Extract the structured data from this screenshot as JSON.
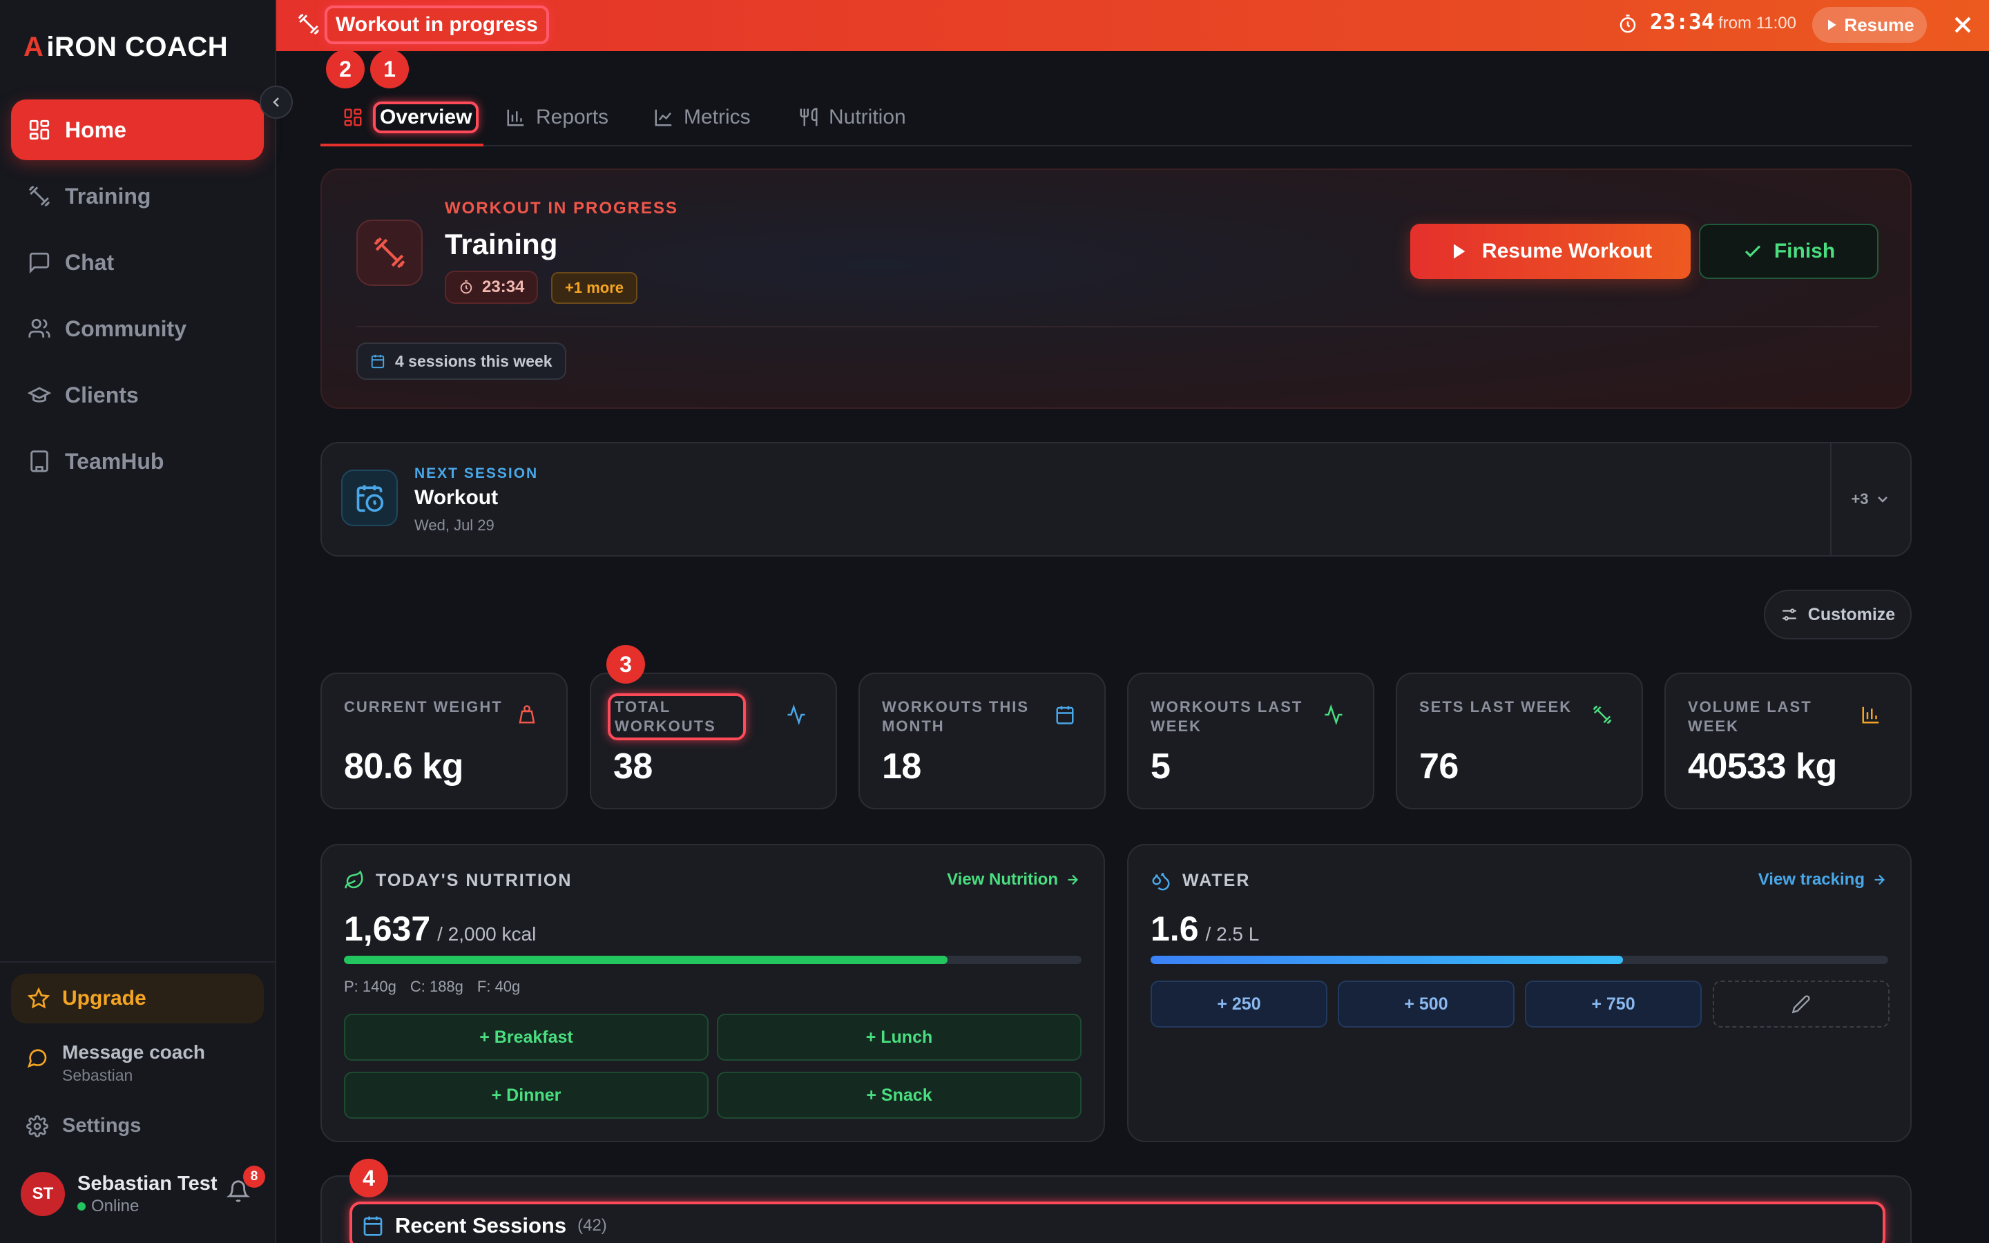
{
  "app": {
    "logo_prefix": "A",
    "logo_brand": "iRON COACH"
  },
  "colors": {
    "accent": "#e5302c",
    "success": "#4ade80",
    "info": "#4aa8e8",
    "warning": "#f5a524"
  },
  "sidebar": {
    "items": [
      {
        "label": "Home",
        "icon": "grid-icon",
        "active": true
      },
      {
        "label": "Training",
        "icon": "dumbbell-icon"
      },
      {
        "label": "Chat",
        "icon": "chat-icon"
      },
      {
        "label": "Community",
        "icon": "users-icon"
      },
      {
        "label": "Clients",
        "icon": "graduation-cap-icon"
      },
      {
        "label": "TeamHub",
        "icon": "building-icon"
      }
    ],
    "upgrade_label": "Upgrade",
    "message_coach": {
      "label": "Message coach",
      "coach_name": "Sebastian"
    },
    "settings_label": "Settings",
    "user": {
      "initials": "ST",
      "name": "Sebastian Test",
      "status": "Online",
      "notification_count": "8"
    }
  },
  "banner": {
    "title": "Workout in progress",
    "timer": "23:34",
    "from_text": "from 11:00",
    "resume_label": "Resume"
  },
  "markers": {
    "m1": "1",
    "m2": "2",
    "m3": "3",
    "m4": "4"
  },
  "tabs": [
    {
      "label": "Overview",
      "icon": "grid-icon",
      "active": true
    },
    {
      "label": "Reports",
      "icon": "bar-chart-icon"
    },
    {
      "label": "Metrics",
      "icon": "line-chart-icon"
    },
    {
      "label": "Nutrition",
      "icon": "utensils-icon"
    }
  ],
  "workout": {
    "kicker": "WORKOUT IN PROGRESS",
    "title": "Training",
    "timer": "23:34",
    "more_badge": "+1 more",
    "resume_label": "Resume Workout",
    "finish_label": "Finish",
    "sessions_label": "4 sessions this week"
  },
  "next_session": {
    "kicker": "NEXT SESSION",
    "title": "Workout",
    "date": "Wed, Jul 29",
    "more": "+3"
  },
  "customize_label": "Customize",
  "stats": [
    {
      "label": "CURRENT WEIGHT",
      "value": "80.6 kg",
      "icon": "weight-icon"
    },
    {
      "label": "TOTAL WORKOUTS",
      "value": "38",
      "icon": "activity-icon"
    },
    {
      "label": "WORKOUTS THIS MONTH",
      "value": "18",
      "icon": "calendar-icon"
    },
    {
      "label": "WORKOUTS LAST WEEK",
      "value": "5",
      "icon": "activity-icon"
    },
    {
      "label": "SETS LAST WEEK",
      "value": "76",
      "icon": "dumbbell-icon"
    },
    {
      "label": "VOLUME LAST WEEK",
      "value": "40533 kg",
      "icon": "bar-chart-icon"
    }
  ],
  "nutrition": {
    "title": "TODAY'S NUTRITION",
    "link": "View Nutrition",
    "consumed": "1,637",
    "goal": "/ 2,000 kcal",
    "progress": 0.8185,
    "macros": [
      "P: 140g",
      "C: 188g",
      "F: 40g"
    ],
    "meals": [
      "+ Breakfast",
      "+ Lunch",
      "+ Dinner",
      "+ Snack"
    ]
  },
  "water": {
    "title": "WATER",
    "link": "View tracking",
    "consumed": "1.6",
    "goal": "/ 2.5 L",
    "progress": 0.64,
    "buttons": [
      "+ 250",
      "+ 500",
      "+ 750"
    ]
  },
  "recent": {
    "title": "Recent Sessions",
    "count": "(42)"
  }
}
